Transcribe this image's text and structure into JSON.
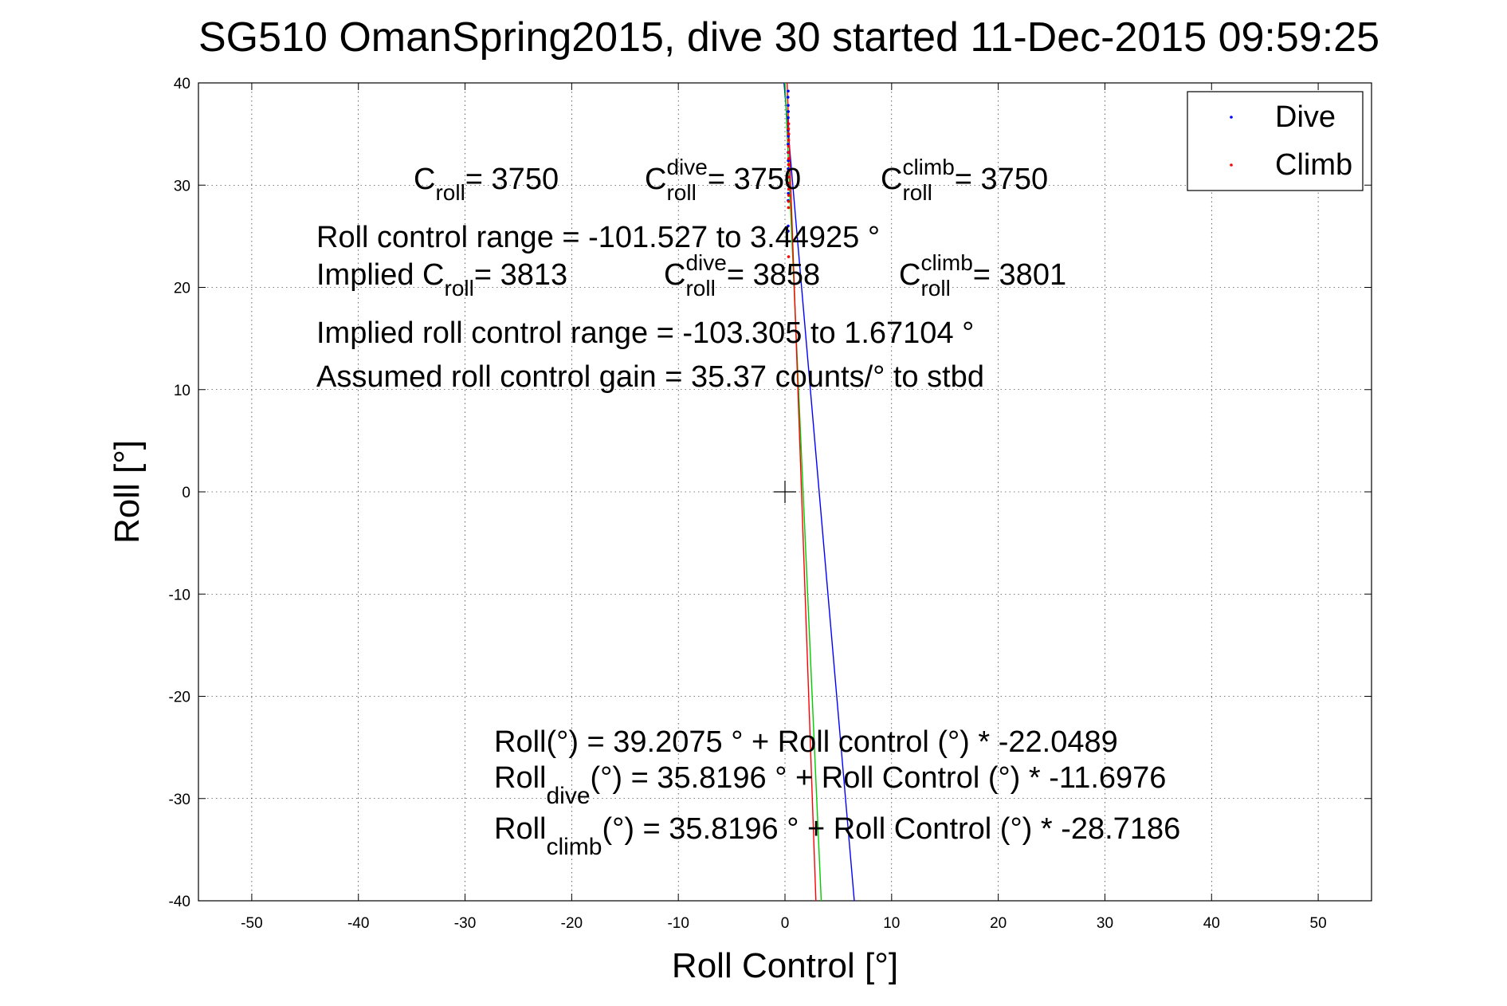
{
  "chart_data": {
    "type": "scatter",
    "title": "SG510 OmanSpring2015, dive 30 started 11-Dec-2015 09:59:25",
    "xlabel": "Roll Control [°]",
    "ylabel": "Roll [°]",
    "xlim": [
      -55,
      55
    ],
    "ylim": [
      -40,
      40
    ],
    "xticks": [
      -50,
      -40,
      -30,
      -20,
      -10,
      0,
      10,
      20,
      30,
      40,
      50
    ],
    "yticks": [
      40,
      30,
      20,
      10,
      0,
      -10,
      -20,
      -30,
      -40
    ],
    "xtick_labels": [
      "-50",
      "-40",
      "-30",
      "-20",
      "-10",
      "0",
      "10",
      "20",
      "30",
      "40",
      "50"
    ],
    "ytick_labels": [
      "40",
      "30",
      "20",
      "10",
      "0",
      "-10",
      "-20",
      "-30",
      "-40"
    ],
    "grid": true,
    "legend_position": "top-right",
    "legend": [
      {
        "name": "Dive",
        "color": "#0000ff"
      },
      {
        "name": "Climb",
        "color": "#ff0000"
      }
    ],
    "series": [
      {
        "name": "Dive",
        "color": "#0000ff",
        "marker": "dot",
        "points": [
          [
            0.3,
            39.2
          ],
          [
            0.28,
            38.6
          ],
          [
            0.3,
            37.8
          ],
          [
            0.31,
            37.2
          ],
          [
            0.3,
            36.6
          ],
          [
            0.32,
            36.0
          ],
          [
            0.3,
            35.4
          ],
          [
            0.31,
            34.8
          ],
          [
            0.29,
            34.0
          ],
          [
            0.3,
            33.2
          ],
          [
            0.31,
            32.4
          ],
          [
            0.3,
            31.6
          ],
          [
            0.29,
            30.8
          ],
          [
            0.3,
            30.0
          ],
          [
            0.31,
            29.2
          ],
          [
            0.3,
            28.5
          ],
          [
            0.3,
            26.0
          ],
          [
            0.3,
            25.5
          ]
        ]
      },
      {
        "name": "Climb",
        "color": "#ff0000",
        "marker": "dot",
        "points": [
          [
            0.34,
            36.0
          ],
          [
            0.33,
            35.5
          ],
          [
            0.35,
            35.0
          ],
          [
            0.34,
            34.4
          ],
          [
            0.33,
            33.8
          ],
          [
            0.35,
            33.2
          ],
          [
            0.34,
            32.6
          ],
          [
            0.33,
            32.0
          ],
          [
            0.35,
            31.4
          ],
          [
            0.34,
            30.8
          ],
          [
            0.33,
            30.2
          ],
          [
            0.34,
            29.6
          ],
          [
            0.35,
            29.0
          ],
          [
            0.34,
            28.4
          ],
          [
            0.33,
            27.8
          ],
          [
            0.34,
            23.0
          ]
        ]
      }
    ],
    "fit_lines": [
      {
        "label": "overall",
        "color": "#0000ff",
        "intercept": 39.2075,
        "slope": -22.0489,
        "x_at_top": -0.09,
        "x_at_bottom": 6.5
      },
      {
        "label": "dive",
        "color": "#00cc00",
        "intercept": 35.8196,
        "slope": -11.6976,
        "x_at_top": 0.0,
        "x_at_bottom": 3.4
      },
      {
        "label": "climb",
        "color": "#ff0000",
        "intercept": 35.8196,
        "slope": -28.7186,
        "x_at_top": 0.2,
        "x_at_bottom": 2.9
      }
    ],
    "origin_marker": {
      "x": 0,
      "y": 0
    },
    "annotations": {
      "c_roll_line": [
        {
          "main": "C",
          "sub": "roll",
          "sup": "",
          "tail": " = 3750"
        },
        {
          "main": "C",
          "sub": "roll",
          "sup": "dive",
          "tail": " = 3750"
        },
        {
          "main": "C",
          "sub": "roll",
          "sup": "climb",
          "tail": " = 3750"
        }
      ],
      "roll_control_range": "Roll control range = -101.527 to 3.44925 °",
      "implied_line": [
        {
          "main": "Implied C",
          "sub": "roll",
          "sup": "",
          "tail": " = 3813"
        },
        {
          "main": "C",
          "sub": "roll",
          "sup": "dive",
          "tail": " = 3858"
        },
        {
          "main": "C",
          "sub": "roll",
          "sup": "climb",
          "tail": " = 3801"
        }
      ],
      "implied_range": "Implied roll control range = -103.305 to 1.67104 °",
      "gain": "Assumed roll control gain = 35.37 counts/° to stbd",
      "equations": [
        {
          "main": "Roll",
          "sub": "",
          "tail": " (°) = 39.2075 ° + Roll control (°) * -22.0489"
        },
        {
          "main": "Roll",
          "sub": "dive",
          "tail": " (°) = 35.8196 ° + Roll Control (°) * -11.6976"
        },
        {
          "main": "Roll",
          "sub": "climb",
          "tail": " (°) = 35.8196 ° + Roll Control (°) * -28.7186"
        }
      ]
    }
  }
}
